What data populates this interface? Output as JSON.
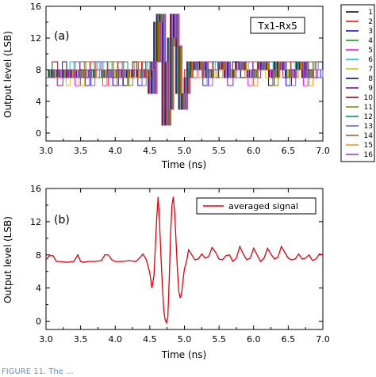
{
  "chart_data": [
    {
      "panel": "(a)",
      "type": "line",
      "annotation": "Tx1-Rx5",
      "xlabel": "Time (ns)",
      "ylabel": "Output level (LSB)",
      "xlim": [
        3.0,
        7.0
      ],
      "ylim": [
        -1,
        16
      ],
      "xticks": [
        "3.0",
        "3.5",
        "4.0",
        "4.5",
        "5.0",
        "5.5",
        "6.0",
        "6.5",
        "7.0"
      ],
      "yticks": [
        "0",
        "4",
        "8",
        "12",
        "16"
      ],
      "legend_placement": "right-outside",
      "series": [
        {
          "name": "1",
          "color": "#000000"
        },
        {
          "name": "2",
          "color": "#ff0000"
        },
        {
          "name": "3",
          "color": "#0000ff"
        },
        {
          "name": "4",
          "color": "#00a000"
        },
        {
          "name": "5",
          "color": "#ff00ff"
        },
        {
          "name": "6",
          "color": "#00c0c0"
        },
        {
          "name": "7",
          "color": "#d0c000"
        },
        {
          "name": "8",
          "color": "#000080"
        },
        {
          "name": "9",
          "color": "#800080"
        },
        {
          "name": "10",
          "color": "#800000"
        },
        {
          "name": "11",
          "color": "#808000"
        },
        {
          "name": "12",
          "color": "#008080"
        },
        {
          "name": "13",
          "color": "#6a5acd"
        },
        {
          "name": "14",
          "color": "#a0522d"
        },
        {
          "name": "15",
          "color": "#ff8c00"
        },
        {
          "name": "16",
          "color": "#9932cc"
        }
      ],
      "x": [
        3.0,
        3.08,
        3.16,
        3.24,
        3.3,
        3.36,
        3.44,
        3.52,
        3.6,
        3.68,
        3.76,
        3.84,
        3.92,
        4.0,
        4.08,
        4.16,
        4.24,
        4.3,
        4.36,
        4.42,
        4.48,
        4.52,
        4.56,
        4.6,
        4.64,
        4.68,
        4.72,
        4.76,
        4.8,
        4.84,
        4.88,
        4.92,
        4.96,
        5.0,
        5.04,
        5.08,
        5.14,
        5.22,
        5.3,
        5.38,
        5.46,
        5.54,
        5.62,
        5.7,
        5.78,
        5.86,
        5.94,
        6.02,
        6.1,
        6.18,
        6.26,
        6.34,
        6.42,
        6.5,
        6.58,
        6.66,
        6.74,
        6.82,
        6.9,
        7.0
      ],
      "y": [
        7,
        8,
        7,
        8,
        7,
        8,
        7,
        8,
        7,
        8,
        8,
        7,
        8,
        7,
        8,
        7,
        8,
        8,
        7,
        8,
        8,
        5,
        9,
        14,
        15,
        9,
        1,
        3,
        12,
        15,
        11,
        5,
        3,
        5,
        7,
        9,
        8,
        9,
        7,
        8,
        8,
        9,
        7,
        8,
        9,
        8,
        7,
        8,
        9,
        8,
        7,
        9,
        8,
        7,
        8,
        9,
        7,
        8,
        8,
        8
      ]
    },
    {
      "panel": "(b)",
      "type": "line",
      "legend_entry": "averaged signal",
      "xlabel": "Time (ns)",
      "ylabel": "Output level (LSB)",
      "xlim": [
        3.0,
        7.0
      ],
      "ylim": [
        -1,
        16
      ],
      "xticks": [
        "3.0",
        "3.5",
        "4.0",
        "4.5",
        "5.0",
        "5.5",
        "6.0",
        "6.5",
        "7.0"
      ],
      "yticks": [
        "0",
        "4",
        "8",
        "12",
        "16"
      ],
      "legend_placement": "top-right",
      "series": [
        {
          "name": "averaged signal",
          "color": "#e8000b"
        }
      ],
      "x": [
        3.0,
        3.05,
        3.1,
        3.15,
        3.2,
        3.3,
        3.4,
        3.46,
        3.5,
        3.55,
        3.6,
        3.7,
        3.8,
        3.85,
        3.9,
        3.95,
        4.0,
        4.1,
        4.2,
        4.3,
        4.35,
        4.4,
        4.45,
        4.5,
        4.53,
        4.56,
        4.58,
        4.6,
        4.62,
        4.64,
        4.66,
        4.68,
        4.7,
        4.72,
        4.74,
        4.76,
        4.78,
        4.8,
        4.82,
        4.84,
        4.86,
        4.88,
        4.9,
        4.92,
        4.94,
        4.96,
        4.98,
        5.0,
        5.03,
        5.06,
        5.1,
        5.15,
        5.2,
        5.25,
        5.3,
        5.35,
        5.4,
        5.45,
        5.5,
        5.55,
        5.6,
        5.65,
        5.7,
        5.75,
        5.8,
        5.85,
        5.9,
        5.95,
        6.0,
        6.05,
        6.1,
        6.15,
        6.2,
        6.25,
        6.3,
        6.35,
        6.4,
        6.45,
        6.5,
        6.55,
        6.6,
        6.65,
        6.7,
        6.75,
        6.8,
        6.85,
        6.9,
        6.95,
        7.0
      ],
      "y": [
        7.4,
        7.9,
        7.9,
        7.2,
        7.2,
        7.1,
        7.2,
        8.0,
        7.2,
        7.1,
        7.2,
        7.2,
        7.3,
        8.0,
        8.0,
        7.4,
        7.2,
        7.2,
        7.3,
        7.2,
        7.6,
        8.1,
        7.4,
        5.8,
        4.0,
        5.5,
        9.0,
        12.5,
        15.0,
        12.0,
        8.0,
        4.5,
        1.5,
        0.2,
        -0.2,
        0.5,
        5.0,
        10.5,
        14.0,
        15.0,
        13.0,
        9.5,
        6.0,
        3.5,
        2.8,
        3.4,
        5.0,
        6.3,
        7.2,
        8.6,
        8.1,
        7.4,
        7.5,
        8.1,
        7.6,
        7.8,
        8.9,
        8.3,
        7.5,
        7.4,
        7.9,
        8.0,
        7.2,
        7.6,
        9.0,
        8.1,
        7.4,
        7.6,
        8.8,
        8.0,
        7.2,
        7.6,
        8.8,
        8.1,
        7.5,
        7.7,
        9.0,
        8.3,
        7.6,
        7.4,
        7.5,
        8.1,
        7.5,
        7.6,
        8.0,
        7.3,
        7.5,
        8.1,
        8.0
      ]
    }
  ],
  "caption_fragment": "FIGURE 11.  The ..."
}
